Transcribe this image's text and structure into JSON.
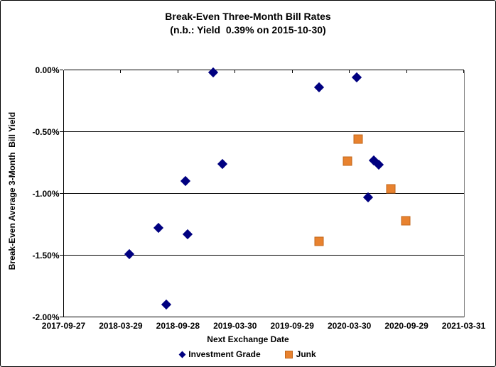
{
  "chart_data": {
    "type": "scatter",
    "title": "Break-Even Three-Month Bill Rates",
    "subtitle": "(n.b.: Yield  0.39% on 2015-10-30)",
    "xlabel": "Next Exchange Date",
    "ylabel": "Break-Even Average 3-Month  Bill Yield",
    "x_range": [
      "2017-09-27",
      "2021-03-31"
    ],
    "y_range_pct": [
      0,
      -2
    ],
    "x_tick_labels": [
      "2017-09-27",
      "2018-03-29",
      "2018-09-28",
      "2019-03-30",
      "2019-09-29",
      "2020-03-30",
      "2020-09-29",
      "2021-03-31"
    ],
    "y_tick_labels": [
      "0.00%",
      "-0.50%",
      "-1.00%",
      "-1.50%",
      "-2.00%"
    ],
    "y_tick_values": [
      0,
      -0.5,
      -1.0,
      -1.5,
      -2.0
    ],
    "grid": "horizontal-only",
    "legend_position": "bottom-center",
    "series": [
      {
        "name": "Investment Grade",
        "marker": "diamond",
        "color": "#000080",
        "points": [
          {
            "x": "2019-01-18",
            "y_pct": -0.02
          },
          {
            "x": "2019-12-24",
            "y_pct": -0.14
          },
          {
            "x": "2020-04-22",
            "y_pct": -0.06
          },
          {
            "x": "2019-02-17",
            "y_pct": -0.76
          },
          {
            "x": "2018-10-23",
            "y_pct": -0.9
          },
          {
            "x": "2020-06-17",
            "y_pct": -0.73
          },
          {
            "x": "2020-07-01",
            "y_pct": -0.77
          },
          {
            "x": "2020-05-29",
            "y_pct": -1.03
          },
          {
            "x": "2018-07-27",
            "y_pct": -1.28
          },
          {
            "x": "2018-10-30",
            "y_pct": -1.33
          },
          {
            "x": "2018-04-25",
            "y_pct": -1.49
          },
          {
            "x": "2018-08-21",
            "y_pct": -1.9
          }
        ]
      },
      {
        "name": "Junk",
        "marker": "square",
        "color": "#E8822F",
        "points": [
          {
            "x": "2020-04-27",
            "y_pct": -0.56
          },
          {
            "x": "2020-03-23",
            "y_pct": -0.74
          },
          {
            "x": "2020-08-09",
            "y_pct": -0.96
          },
          {
            "x": "2020-09-26",
            "y_pct": -1.22
          },
          {
            "x": "2019-12-25",
            "y_pct": -1.39
          }
        ]
      }
    ]
  }
}
